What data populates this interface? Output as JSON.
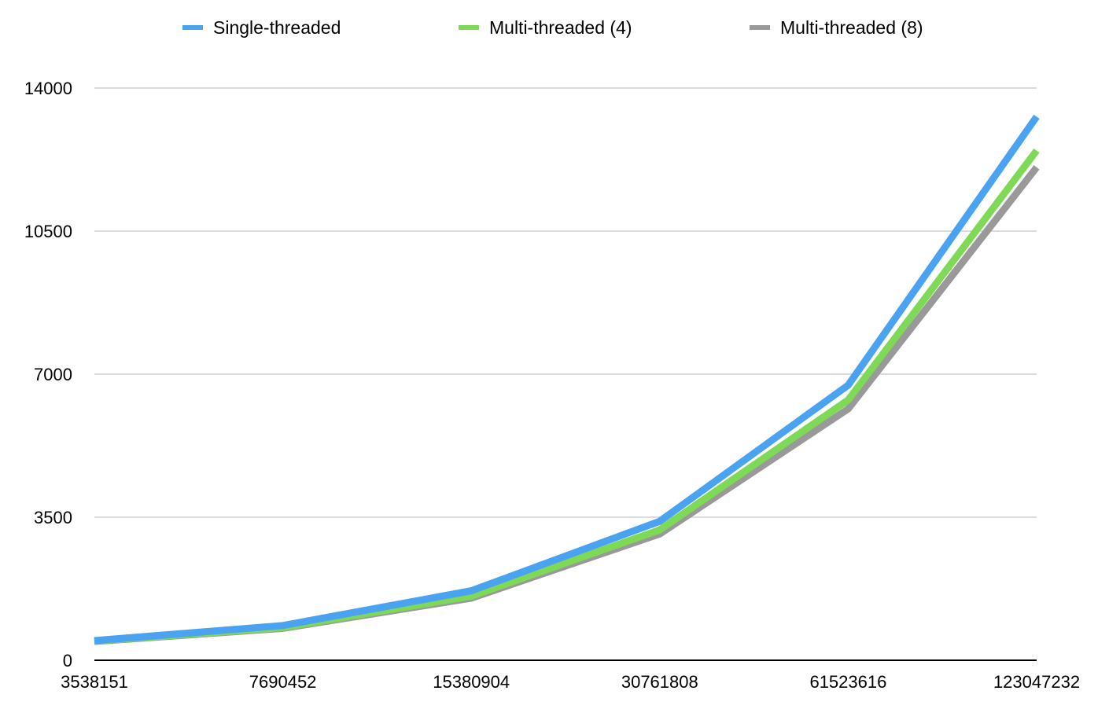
{
  "chart_data": {
    "type": "line",
    "title": "",
    "xlabel": "",
    "ylabel": "",
    "categories": [
      "3538151",
      "7690452",
      "15380904",
      "30761808",
      "61523616",
      "123047232"
    ],
    "ylim": [
      0,
      14000
    ],
    "yticks": [
      "0",
      "3500",
      "7000",
      "10500",
      "14000"
    ],
    "grid": "horizontal",
    "legend_position": "top",
    "series": [
      {
        "name": "Multi-threaded (8)",
        "color": "#999999",
        "values": [
          460,
          780,
          1520,
          3090,
          6150,
          12060
        ]
      },
      {
        "name": "Multi-threaded (4)",
        "color": "#7ed957",
        "values": [
          470,
          800,
          1570,
          3190,
          6370,
          12470
        ]
      },
      {
        "name": "Single-threaded",
        "color": "#4aa3f0",
        "values": [
          480,
          850,
          1700,
          3400,
          6730,
          13300
        ]
      }
    ],
    "legend_order": [
      "Single-threaded",
      "Multi-threaded (4)",
      "Multi-threaded (8)"
    ]
  }
}
